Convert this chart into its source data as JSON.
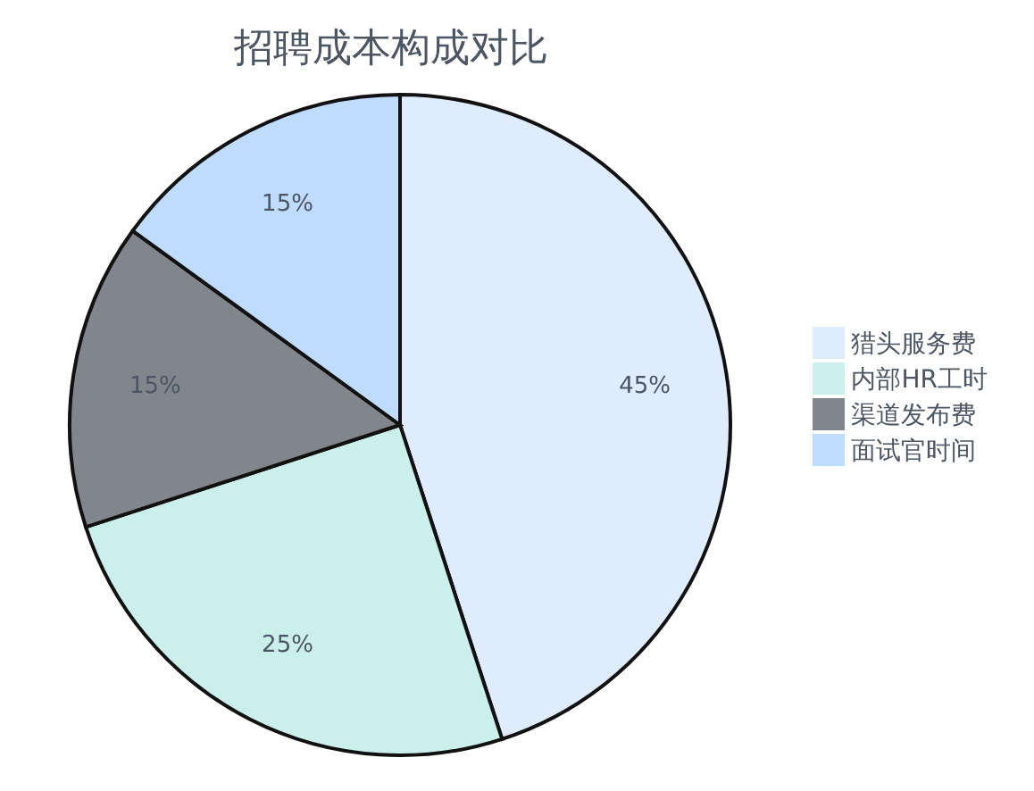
{
  "chart_data": {
    "type": "pie",
    "title": "招聘成本构成对比",
    "categories": [
      "猎头服务费",
      "内部HR工时",
      "渠道发布费",
      "面试官时间"
    ],
    "values": [
      45,
      25,
      15,
      15
    ],
    "colors": [
      "#dfecfd",
      "#cbefeb",
      "#81868c",
      "#bfdbfe"
    ],
    "value_labels": [
      "45%",
      "25%",
      "15%",
      "15%"
    ],
    "legend": "right"
  }
}
